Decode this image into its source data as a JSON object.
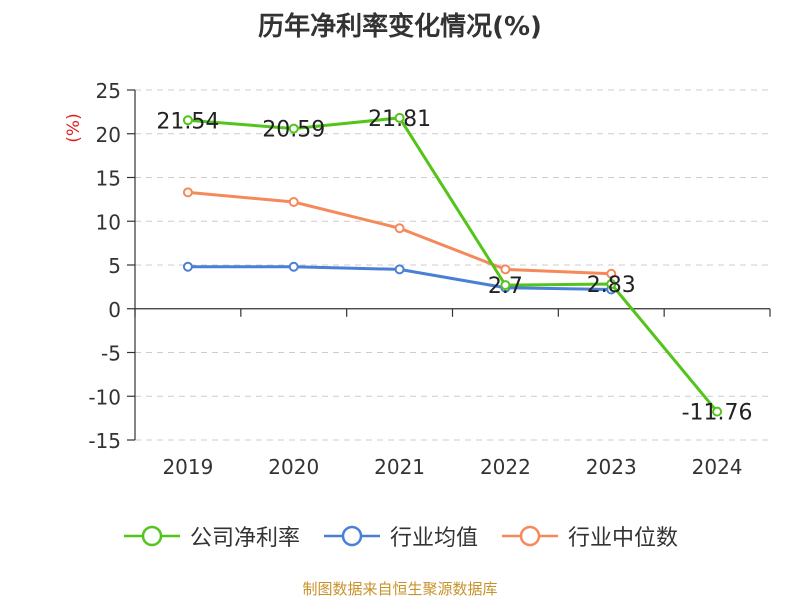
{
  "chart_data": {
    "type": "line",
    "title": "历年净利率变化情况(%)",
    "ylabel": "(%)",
    "categories": [
      "2019",
      "2020",
      "2021",
      "2022",
      "2023",
      "2024"
    ],
    "ylim": [
      -15,
      25
    ],
    "yticks": [
      25,
      20,
      15,
      10,
      5,
      0,
      -5,
      -10,
      -15
    ],
    "grid": true,
    "legend_position": "bottom",
    "series": [
      {
        "name": "公司净利率",
        "color": "#52c41a",
        "values": [
          21.54,
          20.59,
          21.81,
          2.7,
          2.83,
          -11.76
        ],
        "labels": [
          "21.54",
          "20.59",
          "21.81",
          "2.7",
          "2.83",
          "-11.76"
        ]
      },
      {
        "name": "行业均值",
        "color": "#4a7fd6",
        "values": [
          4.8,
          4.8,
          4.5,
          2.4,
          2.2,
          null
        ]
      },
      {
        "name": "行业中位数",
        "color": "#f5895a",
        "values": [
          13.3,
          12.2,
          9.2,
          4.5,
          4.0,
          null
        ]
      }
    ]
  },
  "footer": {
    "source": "制图数据来自恒生聚源数据库",
    "source_color": "#c8922a"
  },
  "ylabel_color": "#e02020"
}
